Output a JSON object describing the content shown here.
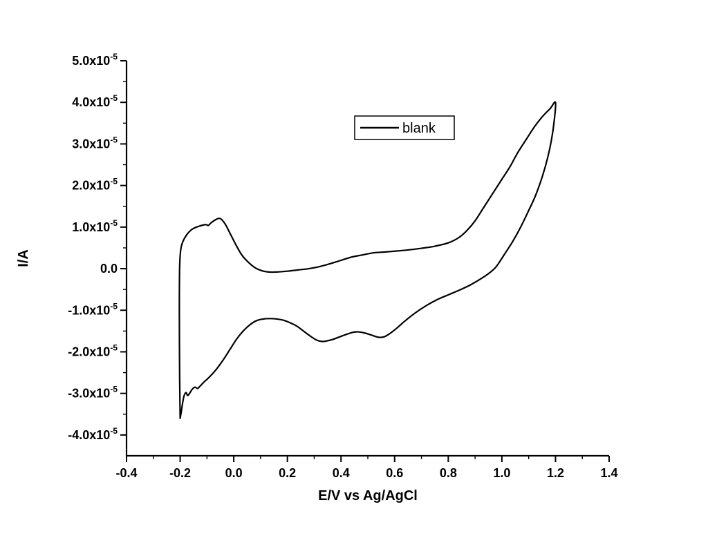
{
  "figure": {
    "background_color": "#ffffff",
    "axis_color": "#000000",
    "curve_color": "#000000"
  },
  "legend": {
    "label": "blank",
    "position": "upper-center"
  },
  "axes": {
    "x_title": "E/V vs Ag/AgCl",
    "y_title": "I/A",
    "x_range": [
      -0.4,
      1.4
    ],
    "y_range_e5": [
      -4.5,
      5.0
    ],
    "y_unit": "1e-5 A",
    "x_tick_values": [
      -0.4,
      -0.2,
      0.0,
      0.2,
      0.4,
      0.6,
      0.8,
      1.0,
      1.2,
      1.4
    ],
    "x_tick_labels": [
      "-0.4",
      "-0.2",
      "0.0",
      "0.2",
      "0.4",
      "0.6",
      "0.8",
      "1.0",
      "1.2",
      "1.4"
    ],
    "y_tick_values_e5": [
      5.0,
      4.0,
      3.0,
      2.0,
      1.0,
      0.0,
      -1.0,
      -2.0,
      -3.0,
      -4.0
    ],
    "y_tick_labels": [
      "5.0x10^-5",
      "4.0x10^-5",
      "3.0x10^-5",
      "2.0x10^-5",
      "1.0x10^-5",
      "0.0",
      "-1.0x10^-5",
      "-2.0x10^-5",
      "-3.0x10^-5",
      "-4.0x10^-5"
    ],
    "x_minor_tick_values": [
      -0.3,
      -0.1,
      0.1,
      0.3,
      0.5,
      0.7,
      0.9,
      1.1,
      1.3
    ],
    "y_minor_tick_values_e5": [
      4.5,
      3.5,
      2.5,
      1.5,
      0.5,
      -0.5,
      -1.5,
      -2.5,
      -3.5
    ],
    "grid": false
  },
  "chart_data": {
    "type": "line",
    "title": "",
    "xlabel": "E/V vs Ag/AgCl",
    "ylabel": "I/A",
    "xlim": [
      -0.4,
      1.4
    ],
    "ylim": [
      -4.5e-05,
      5e-05
    ],
    "legend_position": "upper-center",
    "description": "Cyclic voltammogram closed loop; potential in V vs Ag/AgCl, current stored in units of 1e-5 A (y_scale).",
    "series": [
      {
        "name": "blank",
        "color": "#000000",
        "y_scale": 1e-05,
        "x": [
          -0.2,
          -0.202,
          -0.203,
          -0.202,
          -0.198,
          -0.19,
          -0.175,
          -0.155,
          -0.13,
          -0.105,
          -0.095,
          -0.085,
          -0.07,
          -0.055,
          -0.045,
          -0.03,
          -0.01,
          0.01,
          0.03,
          0.055,
          0.08,
          0.105,
          0.13,
          0.16,
          0.2,
          0.24,
          0.28,
          0.32,
          0.36,
          0.4,
          0.44,
          0.48,
          0.52,
          0.56,
          0.6,
          0.65,
          0.7,
          0.75,
          0.8,
          0.84,
          0.87,
          0.9,
          0.93,
          0.96,
          0.98,
          1.0,
          1.03,
          1.06,
          1.09,
          1.12,
          1.15,
          1.18,
          1.2,
          1.195,
          1.185,
          1.17,
          1.15,
          1.125,
          1.1,
          1.07,
          1.04,
          1.01,
          0.99,
          0.975,
          0.95,
          0.92,
          0.88,
          0.84,
          0.8,
          0.76,
          0.72,
          0.68,
          0.64,
          0.61,
          0.58,
          0.56,
          0.54,
          0.515,
          0.49,
          0.465,
          0.445,
          0.42,
          0.395,
          0.37,
          0.345,
          0.33,
          0.31,
          0.285,
          0.26,
          0.235,
          0.21,
          0.185,
          0.16,
          0.135,
          0.11,
          0.085,
          0.06,
          0.035,
          0.01,
          -0.015,
          -0.04,
          -0.065,
          -0.09,
          -0.11,
          -0.125,
          -0.135,
          -0.145,
          -0.155,
          -0.165,
          -0.172,
          -0.178,
          -0.185,
          -0.19,
          -0.196,
          -0.2
        ],
        "y": [
          -3.6,
          -2.5,
          -1.0,
          0.0,
          0.45,
          0.65,
          0.82,
          0.95,
          1.02,
          1.06,
          1.04,
          1.1,
          1.17,
          1.21,
          1.18,
          1.05,
          0.8,
          0.55,
          0.33,
          0.15,
          0.02,
          -0.05,
          -0.08,
          -0.08,
          -0.06,
          -0.03,
          0.0,
          0.05,
          0.12,
          0.2,
          0.28,
          0.33,
          0.38,
          0.4,
          0.42,
          0.45,
          0.49,
          0.54,
          0.62,
          0.75,
          0.92,
          1.15,
          1.45,
          1.75,
          1.95,
          2.15,
          2.45,
          2.8,
          3.1,
          3.4,
          3.65,
          3.85,
          4.0,
          3.55,
          3.1,
          2.65,
          2.2,
          1.75,
          1.4,
          1.0,
          0.65,
          0.35,
          0.15,
          0.02,
          -0.12,
          -0.25,
          -0.4,
          -0.52,
          -0.63,
          -0.74,
          -0.88,
          -1.05,
          -1.25,
          -1.42,
          -1.57,
          -1.64,
          -1.65,
          -1.6,
          -1.55,
          -1.52,
          -1.53,
          -1.58,
          -1.64,
          -1.7,
          -1.74,
          -1.75,
          -1.72,
          -1.62,
          -1.5,
          -1.38,
          -1.3,
          -1.24,
          -1.21,
          -1.2,
          -1.21,
          -1.25,
          -1.35,
          -1.5,
          -1.7,
          -1.95,
          -2.2,
          -2.42,
          -2.6,
          -2.72,
          -2.82,
          -2.88,
          -2.85,
          -2.9,
          -3.0,
          -3.05,
          -2.98,
          -3.05,
          -3.2,
          -3.45,
          -3.6
        ]
      }
    ]
  }
}
